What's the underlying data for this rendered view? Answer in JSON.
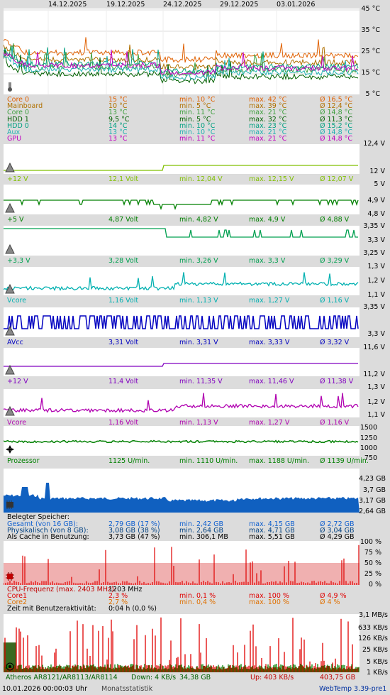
{
  "dates": [
    "14.12.2025",
    "19.12.2025",
    "24.12.2025",
    "29.12.2025",
    "03.01.2026"
  ],
  "temp": {
    "scale": [
      "45 °C",
      "35 °C",
      "25 °C",
      "15 °C",
      "5 °C"
    ],
    "rows": [
      {
        "name": "Core 0",
        "cur": "15 °C",
        "min": "min. 10 °C",
        "max": "max. 42 °C",
        "avg": "Ø 16,5 °C",
        "color": "#e06000"
      },
      {
        "name": "Mainboard",
        "cur": "10 °C",
        "min": "min. 5 °C",
        "max": "max. 39 °C",
        "avg": "Ø 12,4 °C",
        "color": "#b07000"
      },
      {
        "name": "Core 0",
        "cur": "13 °C",
        "min": "min. 11 °C",
        "max": "max. 21 °C",
        "avg": "Ø 14,8 °C",
        "color": "#40a040"
      },
      {
        "name": "HDD 1",
        "cur": "9,5 °C",
        "min": "min. 5 °C",
        "max": "max. 32 °C",
        "avg": "Ø 11,3 °C",
        "color": "#006000"
      },
      {
        "name": "HDD 0",
        "cur": "14 °C",
        "min": "min. 10 °C",
        "max": "max. 23 °C",
        "avg": "Ø 15,2 °C",
        "color": "#00a080"
      },
      {
        "name": "Aux",
        "cur": "13 °C",
        "min": "min. 10 °C",
        "max": "max. 21 °C",
        "avg": "Ø 14,8 °C",
        "color": "#20b0b0"
      },
      {
        "name": "GPU",
        "cur": "13 °C",
        "min": "min. 11 °C",
        "max": "max. 21 °C",
        "avg": "Ø 14,8 °C",
        "color": "#c000c0"
      }
    ]
  },
  "volt": [
    {
      "scale": [
        "12,4 V",
        "12 V"
      ],
      "name": "+12 V",
      "cur": "12,1 Volt",
      "min": "min. 12,04 V",
      "max": "max. 12,15 V",
      "avg": "Ø 12,07 V",
      "color": "#80c000"
    },
    {
      "scale": [
        "5 V",
        "4,9 V",
        "4,8 V"
      ],
      "name": "+5 V",
      "cur": "4,87 Volt",
      "min": "min. 4,82 V",
      "max": "max. 4,9 V",
      "avg": "Ø 4,88 V",
      "color": "#008000"
    },
    {
      "scale": [
        "3,35 V",
        "3,3 V",
        "3,25 V"
      ],
      "name": "+3,3 V",
      "cur": "3,28 Volt",
      "min": "min. 3,26 V",
      "max": "max. 3,3 V",
      "avg": "Ø 3,29 V",
      "color": "#00a050"
    },
    {
      "scale": [
        "1,3 V",
        "1,2 V",
        "1,1 V"
      ],
      "name": "Vcore",
      "cur": "1,16 Volt",
      "min": "min. 1,13 V",
      "max": "max. 1,27 V",
      "avg": "Ø 1,16 V",
      "color": "#00b0b0"
    },
    {
      "scale": [
        "3,35 V",
        "3,3 V"
      ],
      "name": "AVcc",
      "cur": "3,31 Volt",
      "min": "min. 3,31 V",
      "max": "max. 3,33 V",
      "avg": "Ø 3,32 V",
      "color": "#0000c0"
    },
    {
      "scale": [
        "11,6 V",
        "11,2 V"
      ],
      "name": "+12 V",
      "cur": "11,4 Volt",
      "min": "min. 11,35 V",
      "max": "max. 11,46 V",
      "avg": "Ø 11,38 V",
      "color": "#8000c0"
    },
    {
      "scale": [
        "1,3 V",
        "1,2 V",
        "1,1 V"
      ],
      "name": "Vcore",
      "cur": "1,16 Volt",
      "min": "min. 1,13 V",
      "max": "max. 1,27 V",
      "avg": "Ø 1,16 V",
      "color": "#b000b0"
    }
  ],
  "fan": {
    "scale": [
      "1500",
      "1250",
      "1000",
      "750"
    ],
    "name": "Prozessor",
    "cur": "1125 U/min.",
    "min": "min. 1110 U/min.",
    "max": "max. 1188 U/min.",
    "avg": "Ø 1139 U/min.",
    "color": "#008000"
  },
  "mem": {
    "scale": [
      "4,23 GB",
      "3,7 GB",
      "3,17 GB",
      "2,64 GB"
    ],
    "title": "Belegter Speicher:",
    "rows": [
      {
        "name": "Gesamt (von 16 GB):",
        "cur": "2,79 GB (17 %)",
        "min": "min. 2,42 GB",
        "max": "max. 4,15 GB",
        "avg": "Ø 2,72 GB",
        "color": "#1060d0"
      },
      {
        "name": "Physikalisch (von 8 GB):",
        "cur": "3,08 GB (38 %)",
        "min": "min. 2,64 GB",
        "max": "max. 4,71 GB",
        "avg": "Ø 3,04 GB",
        "color": "#004080"
      },
      {
        "name": "Als Cache in Benutzung:",
        "cur": "3,73 GB (47 %)",
        "min": "min. 306,1 MB",
        "max": "max. 5,51 GB",
        "avg": "Ø 4,29 GB",
        "color": "#000000"
      }
    ]
  },
  "cpu": {
    "scale": [
      "100 %",
      "75 %",
      "50 %",
      "25 %",
      "0 %"
    ],
    "title": "CPU-Frequenz (max. 2403 MHz):",
    "title_val": "1203 MHz",
    "rows": [
      {
        "name": "Core1",
        "cur": "2,3 %",
        "min": "min. 0,1 %",
        "max": "max. 100 %",
        "avg": "Ø 4,9 %",
        "color": "#e00000"
      },
      {
        "name": "Core2",
        "cur": "2,7 %",
        "min": "min. 0,4 %",
        "max": "max. 100 %",
        "avg": "Ø 4 %",
        "color": "#e07000"
      }
    ],
    "idle_label": "Zeit mit Benutzeraktivität:",
    "idle_val": "0:04 h (0,0 %)"
  },
  "net": {
    "scale": [
      "3,1 MB/s",
      "633 KB/s",
      "126 KB/s",
      "25 KB/s",
      "5 KB/s",
      "1 KB/s"
    ],
    "name": "Atheros AR8121/AR8113/AR8114",
    "down": "Down: 4 KB/s",
    "total_down": "34,38 GB",
    "up": "Up: 403 KB/s",
    "total_up": "403,75 GB"
  },
  "footer": {
    "datetime": "10.01.2026 00:00:03 Uhr",
    "stat": "Monatsstatistik",
    "app": "WebTemp 3.39-pre1"
  },
  "colors": {
    "bg": "#dcdcdc",
    "panel": "#ffffff",
    "grid": "#c8c8c8",
    "mem_fill": "#1060c0",
    "cpu_fill": "#f0b0b0",
    "net_up": "#e00000",
    "net_down": "#008000"
  }
}
